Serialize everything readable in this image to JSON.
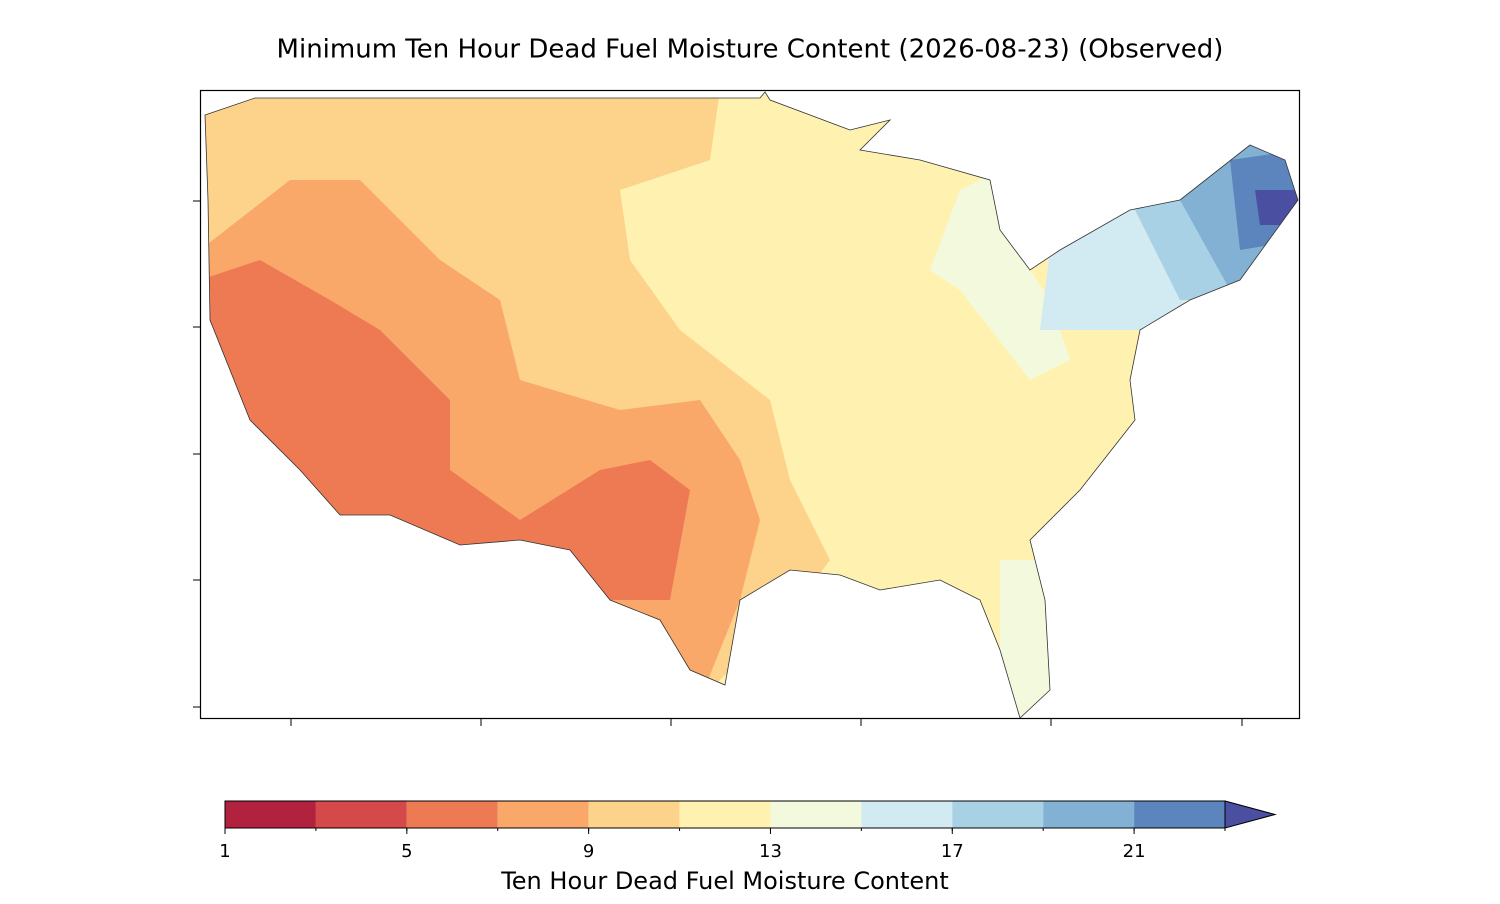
{
  "title": "Minimum Ten Hour Dead Fuel Moisture Content (2026-08-23) (Observed)",
  "colorbar": {
    "label": "Ten Hour Dead Fuel Moisture Content",
    "bounds": [
      1,
      3,
      5,
      7,
      9,
      11,
      13,
      15,
      17,
      19,
      21,
      23
    ],
    "colors": [
      "#b2223f",
      "#d6494a",
      "#ee7a54",
      "#f9a86a",
      "#fdd38c",
      "#fff2b0",
      "#f3f9dc",
      "#d2eaf2",
      "#a9d1e5",
      "#82b1d4",
      "#5c84bd"
    ],
    "extend_color": "#4b4fa2",
    "xlim": [
      1,
      23
    ],
    "ticks": [
      1,
      5,
      9,
      13,
      17,
      21
    ]
  }
}
